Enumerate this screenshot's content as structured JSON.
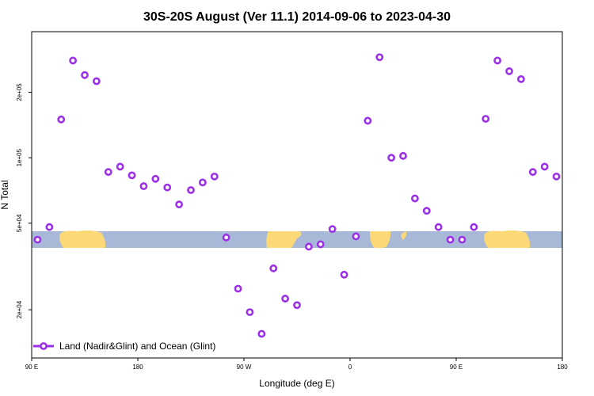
{
  "chart_data": {
    "type": "scatter",
    "title": "30S-20S August (Ver 11.1)   2014-09-06 to 2023-04-30",
    "xlabel": "Longitude (deg E)",
    "ylabel": "N Total",
    "y_scale": "log",
    "ylim": [
      12000,
      380000
    ],
    "x_ticks": [
      {
        "value": 90,
        "label": "90 E"
      },
      {
        "value": 180,
        "label": "180"
      },
      {
        "value": 270,
        "label": "90 W"
      },
      {
        "value": 360,
        "label": "0"
      },
      {
        "value": 450,
        "label": "90 E"
      },
      {
        "value": 540,
        "label": "180"
      }
    ],
    "y_ticks": [
      {
        "value": 20000,
        "label": "2e+04"
      },
      {
        "value": 50000,
        "label": "5e+04"
      },
      {
        "value": 100000,
        "label": "1e+05"
      },
      {
        "value": 200000,
        "label": "2e+05"
      }
    ],
    "grid": false,
    "legend_position": "bottom-left",
    "series": [
      {
        "name": "Land (Nadir&Glint) and Ocean (Glint)",
        "color": "#9b30e8",
        "marker": "open-circle",
        "x": [
          95,
          105,
          115,
          125,
          135,
          145,
          155,
          165,
          175,
          185,
          195,
          205,
          215,
          225,
          235,
          245,
          255,
          265,
          275,
          285,
          295,
          305,
          315,
          325,
          335,
          345,
          355,
          365,
          375,
          385,
          395,
          405,
          415,
          425,
          435,
          445,
          455,
          465,
          475,
          485,
          495,
          505,
          515,
          525,
          535
        ],
        "y": [
          42000,
          48000,
          150000,
          280000,
          240000,
          225000,
          86000,
          91000,
          83000,
          74000,
          80000,
          73000,
          61000,
          71000,
          77000,
          82000,
          43000,
          25000,
          19500,
          15500,
          31000,
          22500,
          21000,
          39000,
          40000,
          47000,
          29000,
          43500,
          148000,
          290000,
          100000,
          102000,
          65000,
          57000,
          48000,
          42000,
          42000,
          48000,
          151000,
          280000,
          250000,
          230000,
          86000,
          91000,
          82000
        ]
      }
    ],
    "background_map": {
      "band": "latitude 30S-20S land/ocean mask",
      "ocean_color": "#a8b9d8",
      "land_color": "#fdd877"
    }
  }
}
